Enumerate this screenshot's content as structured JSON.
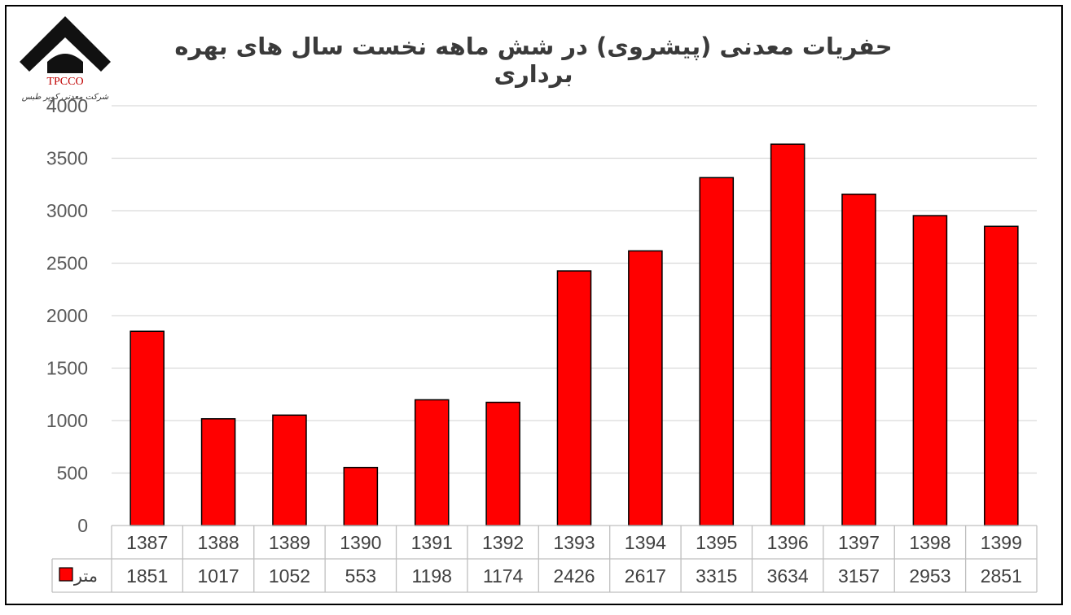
{
  "logo": {
    "text": "TPCCO",
    "subtitle": "شرکت معدنی کوپر طبس"
  },
  "chart_data": {
    "type": "bar",
    "title": "حفریات معدنی (پیشروی) در شش ماهه نخست سال های بهره برداری",
    "categories": [
      "1387",
      "1388",
      "1389",
      "1390",
      "1391",
      "1392",
      "1393",
      "1394",
      "1395",
      "1396",
      "1397",
      "1398",
      "1399"
    ],
    "series": [
      {
        "name": "متر",
        "values": [
          1851,
          1017,
          1052,
          553,
          1198,
          1174,
          2426,
          2617,
          3315,
          3634,
          3157,
          2953,
          2851
        ]
      }
    ],
    "ylim": [
      0,
      4000
    ],
    "yticks": [
      0,
      500,
      1000,
      1500,
      2000,
      2500,
      3000,
      3500,
      4000
    ],
    "grid": true,
    "legend": "data-table",
    "bar_color": "#ff0000",
    "bar_border": "#000000"
  }
}
